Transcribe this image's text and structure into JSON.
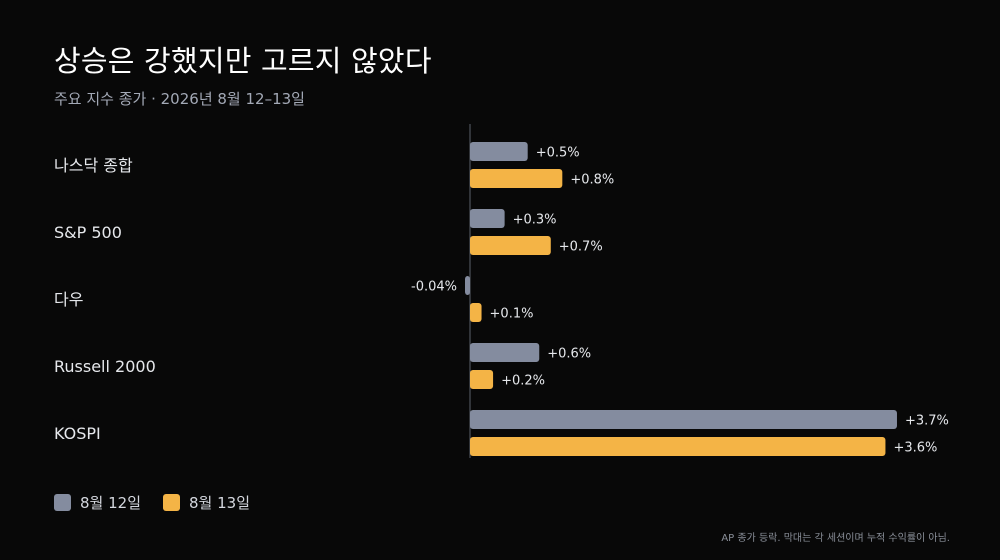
{
  "header": {
    "title": "상승은 강했지만 고르지 않았다",
    "subtitle": "주요 지수 종가 · 2026년 8월 12–13일"
  },
  "footnote": "AP 종가 등락. 막대는 각 세션이며 누적 수익률이 아님.",
  "colors": {
    "background": "#080808",
    "series_1": "#848c9f",
    "series_2": "#f4b446",
    "axis_line": "#5a5f6a"
  },
  "chart_data": {
    "type": "bar",
    "orientation": "horizontal",
    "categories": [
      "나스닥 종합",
      "S&P 500",
      "다우",
      "Russell 2000",
      "KOSPI"
    ],
    "series": [
      {
        "name": "8월 12일",
        "values": [
          0.5,
          0.3,
          -0.04,
          0.6,
          3.7
        ],
        "labels": [
          "+0.5%",
          "+0.3%",
          "-0.04%",
          "+0.6%",
          "+3.7%"
        ]
      },
      {
        "name": "8월 13일",
        "values": [
          0.8,
          0.7,
          0.1,
          0.2,
          3.6
        ],
        "labels": [
          "+0.8%",
          "+0.7%",
          "+0.1%",
          "+0.2%",
          "+3.6%"
        ]
      }
    ],
    "unit": "%",
    "grid": false,
    "legend_position": "bottom-left"
  }
}
